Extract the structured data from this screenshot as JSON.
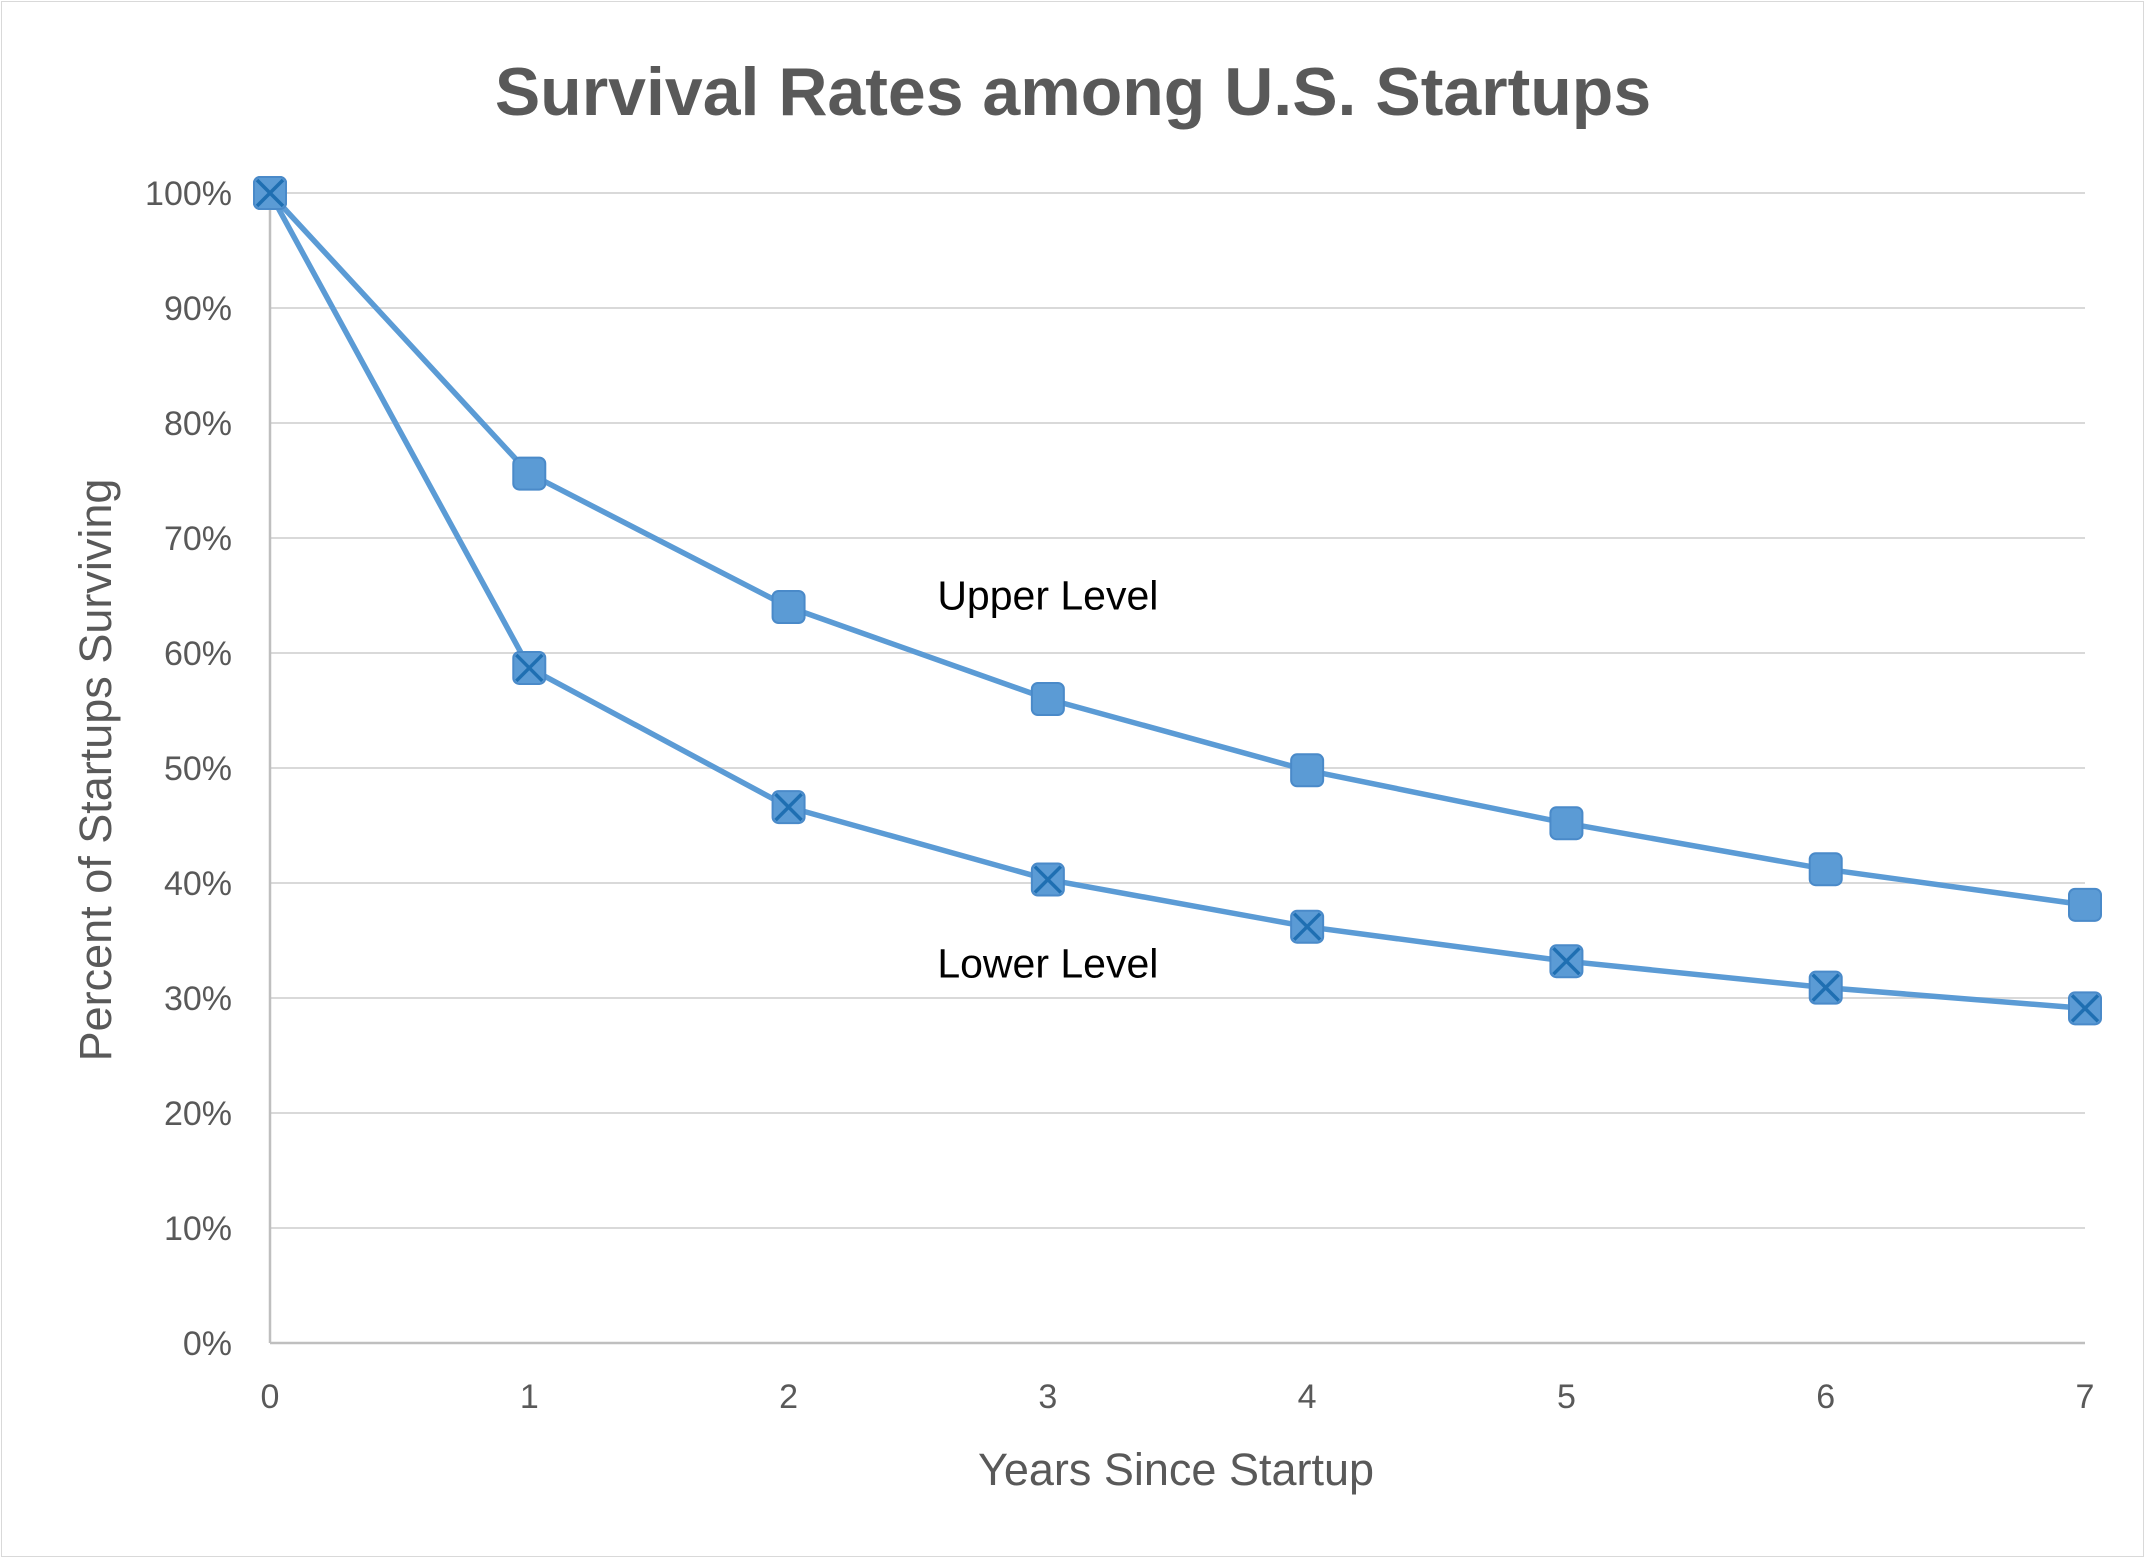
{
  "chart_data": {
    "type": "line",
    "title": "Survival Rates among U.S. Startups",
    "xlabel": "Years Since Startup",
    "ylabel": "Percent of Startups Surviving",
    "x": [
      0,
      1,
      2,
      3,
      4,
      5,
      6,
      7
    ],
    "x_tick_labels": [
      "0",
      "1",
      "2",
      "3",
      "4",
      "5",
      "6",
      "7"
    ],
    "y_tick_labels": [
      "0%",
      "10%",
      "20%",
      "30%",
      "40%",
      "50%",
      "60%",
      "70%",
      "80%",
      "90%",
      "100%"
    ],
    "xlim": [
      0,
      7
    ],
    "ylim": [
      0,
      100
    ],
    "grid": "horizontal",
    "legend": "none",
    "series": [
      {
        "values": [
          100,
          75.6,
          64.0,
          56.0,
          49.8,
          45.2,
          41.2,
          38.1
        ],
        "marker": "square",
        "color": "#5B9BD5"
      },
      {
        "values": [
          100,
          58.7,
          46.6,
          40.3,
          36.2,
          33.2,
          30.9,
          29.1
        ],
        "marker": "square-x",
        "color": "#5B9BD5",
        "x_color": "#1F6FB2"
      }
    ],
    "annotations": [
      {
        "text": "Upper Level",
        "x": 3.0,
        "y": 65
      },
      {
        "text": "Lower Level",
        "x": 3.0,
        "y": 33
      }
    ]
  }
}
